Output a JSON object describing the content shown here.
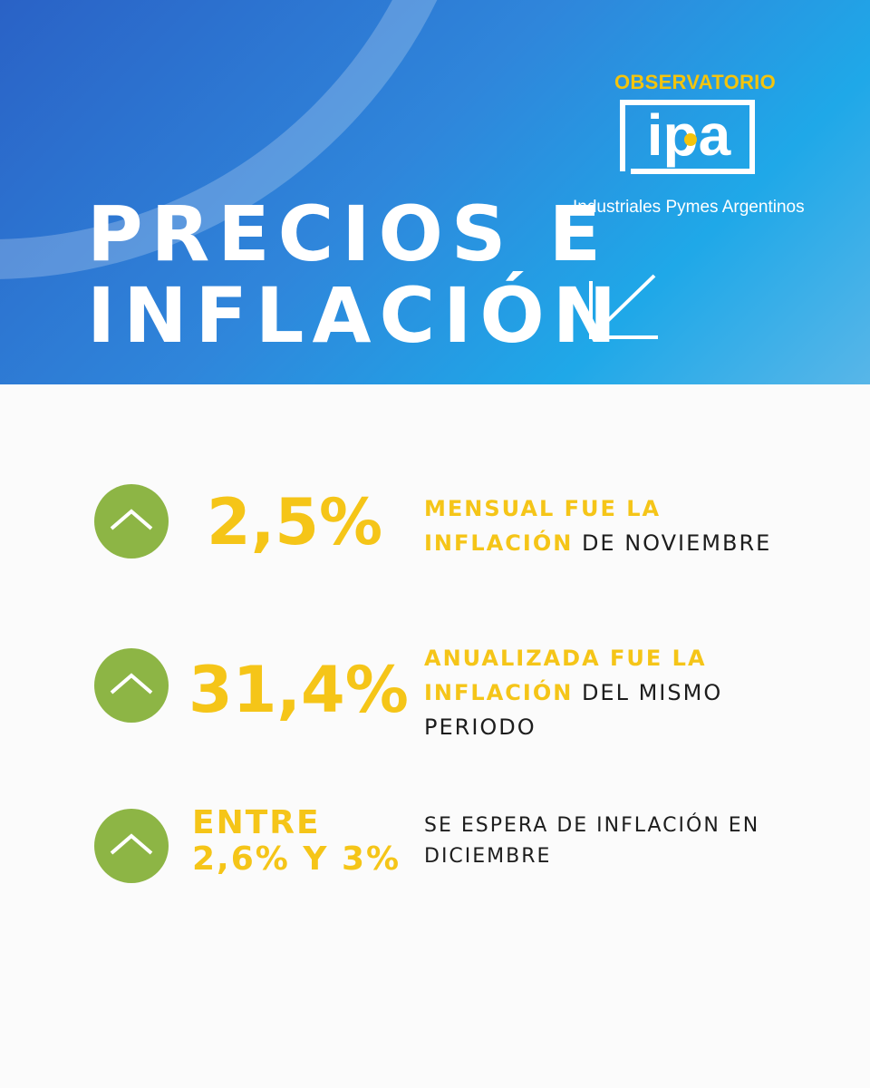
{
  "header": {
    "title_line1": "PRECIOS E",
    "title_line2": "INFLACIÓN",
    "arrow_icon": "arrow-down-left-icon"
  },
  "logo": {
    "top": "OBSERVATORIO",
    "letters": "ipa",
    "subtitle": "Industriales Pymes Argentinos"
  },
  "colors": {
    "accent_yellow": "#f5c518",
    "icon_green": "#8db545",
    "text_dark": "#1d1d1d"
  },
  "stats": [
    {
      "value": "2,5%",
      "highlight_line1": "MENSUAL FUE LA",
      "highlight_line2": "INFLACIÓN",
      "rest_line2": " DE NOVIEMBRE",
      "icon": "chevron-up-icon"
    },
    {
      "value": "31,4%",
      "highlight_line1": "ANUALIZADA FUE LA",
      "highlight_line2": "INFLACIÓN",
      "rest_line2": " DEL MISMO",
      "line3": "PERIODO",
      "icon": "chevron-up-icon"
    },
    {
      "value_line1": "ENTRE",
      "value_line2": "2,6% Y 3%",
      "desc_line1": "SE ESPERA DE INFLACIÓN EN",
      "desc_line2": "DICIEMBRE",
      "icon": "chevron-up-icon"
    }
  ]
}
